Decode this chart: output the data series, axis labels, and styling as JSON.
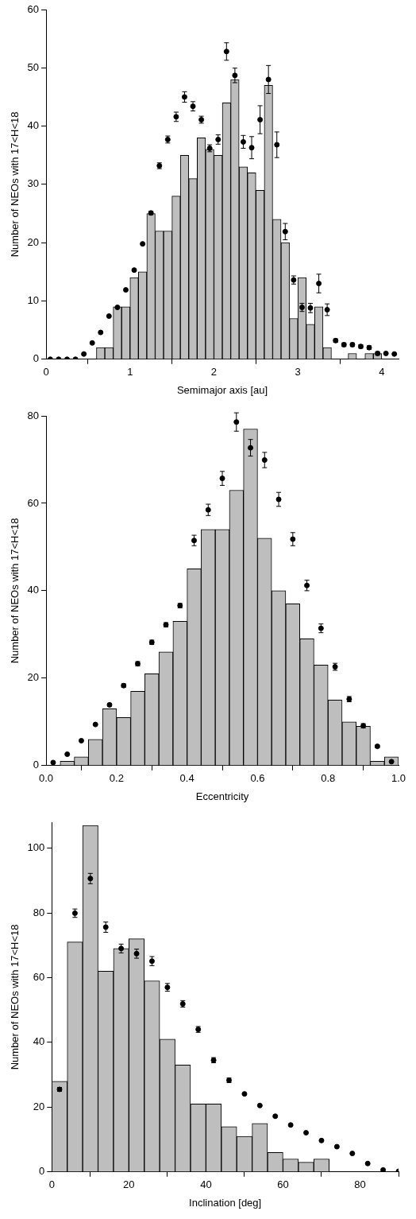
{
  "chart_data": [
    {
      "type": "histogram",
      "xlabel": "Semimajor axis [au]",
      "ylabel": "Number of NEOs with 17<H<18",
      "xlim": [
        0,
        4.2
      ],
      "ylim": [
        0,
        60
      ],
      "xticks": [
        0,
        1,
        2,
        3,
        4
      ],
      "yticks": [
        0,
        10,
        20,
        30,
        40,
        50,
        60
      ],
      "marker": "circle",
      "series": [
        {
          "color": "#bebebe",
          "bins": [
            0.6,
            0.7,
            0.8,
            0.9,
            1.0,
            1.1,
            1.2,
            1.3,
            1.4,
            1.5,
            1.6,
            1.7,
            1.8,
            1.9,
            2.0,
            2.1,
            2.2,
            2.3,
            2.4,
            2.5,
            2.6,
            2.7,
            2.8,
            2.9,
            3.0,
            3.1,
            3.2,
            3.3,
            3.4,
            3.5,
            3.6,
            3.7,
            3.8,
            3.9,
            4.0
          ],
          "values": [
            2,
            2,
            9,
            9,
            14,
            15,
            25,
            22,
            22,
            28,
            35,
            31,
            38,
            36,
            35,
            44,
            48,
            33,
            32,
            29,
            47,
            24,
            20,
            7,
            14,
            6,
            9,
            2,
            0,
            0,
            1,
            0,
            1,
            1
          ]
        },
        {
          "type": "scatter",
          "color": "#000000",
          "x": [
            0.05,
            0.15,
            0.25,
            0.35,
            0.45,
            0.55,
            0.65,
            0.75,
            0.85,
            0.95,
            1.05,
            1.15,
            1.25,
            1.35,
            1.45,
            1.55,
            1.65,
            1.75,
            1.85,
            1.95,
            2.05,
            2.15,
            2.25,
            2.35,
            2.45,
            2.55,
            2.65,
            2.75,
            2.85,
            2.95,
            3.05,
            3.15,
            3.25,
            3.35,
            3.45,
            3.55,
            3.65,
            3.75,
            3.85,
            3.95,
            4.05,
            4.15
          ],
          "values": [
            0,
            0,
            0,
            0,
            0.9,
            2.8,
            4.6,
            7.4,
            8.9,
            11.9,
            15.3,
            19.8,
            25.1,
            33.2,
            37.7,
            41.6,
            45.0,
            43.4,
            41.1,
            36.2,
            37.7,
            52.8,
            48.7,
            37.3,
            36.3,
            41.1,
            48.0,
            36.8,
            21.9,
            13.6,
            8.9,
            8.8,
            13.0,
            8.5,
            3.2,
            2.5,
            2.5,
            2.2,
            2.0,
            1.0,
            1.0,
            0.9
          ],
          "errors": [
            null,
            null,
            null,
            null,
            null,
            null,
            null,
            null,
            null,
            null,
            null,
            null,
            0.3,
            0.5,
            0.6,
            0.8,
            0.9,
            0.8,
            0.6,
            0.6,
            0.8,
            1.5,
            1.25,
            1.1,
            1.9,
            2.4,
            2.4,
            2.2,
            1.4,
            0.7,
            0.7,
            0.8,
            1.6,
            1.0,
            0.3,
            0.3,
            0.3,
            0.3,
            0.3,
            0.3,
            null,
            null
          ]
        }
      ]
    },
    {
      "type": "histogram",
      "xlabel": "Eccentricity",
      "ylabel": "Number of NEOs with 17<H<18",
      "xlim": [
        0,
        1
      ],
      "ylim": [
        0,
        80
      ],
      "xticks": [
        {
          "value": 0,
          "label": "0.0"
        },
        {
          "value": 0.2,
          "label": "0.2"
        },
        {
          "value": 0.4,
          "label": "0.4"
        },
        {
          "value": 0.6,
          "label": "0.6"
        },
        {
          "value": 0.8,
          "label": "0.8"
        },
        {
          "value": 1,
          "label": "1.0"
        }
      ],
      "yticks": [
        0,
        20,
        40,
        60,
        80
      ],
      "marker": "circle",
      "series": [
        {
          "color": "#bebebe",
          "bins": [
            0,
            0.04,
            0.08,
            0.12,
            0.16,
            0.2,
            0.24,
            0.28,
            0.32,
            0.36,
            0.4,
            0.44,
            0.48,
            0.52,
            0.56,
            0.6,
            0.64,
            0.68,
            0.72,
            0.76,
            0.8,
            0.84,
            0.88,
            0.92,
            0.96,
            1.0
          ],
          "values": [
            0,
            1,
            2,
            6,
            13,
            11,
            17,
            21,
            26,
            33,
            45,
            54,
            54,
            63,
            77,
            52,
            40,
            37,
            29,
            23,
            15,
            10,
            9,
            1,
            2
          ]
        },
        {
          "type": "scatter",
          "color": "#000000",
          "x": [
            0.02,
            0.06,
            0.1,
            0.14,
            0.18,
            0.22,
            0.26,
            0.3,
            0.34,
            0.38,
            0.42,
            0.46,
            0.5,
            0.54,
            0.58,
            0.62,
            0.66,
            0.7,
            0.74,
            0.78,
            0.82,
            0.86,
            0.9,
            0.94,
            0.98
          ],
          "values": [
            0.7,
            2.6,
            5.7,
            9.4,
            13.9,
            18.3,
            23.3,
            28.2,
            32.2,
            36.6,
            51.5,
            58.5,
            65.7,
            78.6,
            72.7,
            69.9,
            60.9,
            51.8,
            41.2,
            31.4,
            22.6,
            15.2,
            9.1,
            4.4,
            0.9
          ],
          "errors": [
            null,
            null,
            null,
            null,
            0.3,
            0.4,
            0.5,
            0.5,
            0.5,
            0.5,
            1.2,
            1.3,
            1.6,
            2.1,
            1.9,
            1.75,
            1.6,
            1.5,
            1.2,
            1.0,
            0.8,
            0.6,
            0.5,
            0.3,
            null
          ]
        }
      ]
    },
    {
      "type": "histogram",
      "xlabel": "Inclination [deg]",
      "ylabel": "Number of NEOs with 17<H<18",
      "xlim": [
        0,
        90
      ],
      "ylim": [
        0,
        108
      ],
      "xticks": [
        0,
        20,
        40,
        60,
        80
      ],
      "yticks": [
        0,
        20,
        40,
        60,
        80,
        100
      ],
      "marker": "circle",
      "series": [
        {
          "color": "#bebebe",
          "bins": [
            0,
            4,
            8,
            12,
            16,
            20,
            24,
            28,
            32,
            36,
            40,
            44,
            48,
            52,
            56,
            60,
            64,
            68,
            72
          ],
          "values": [
            28,
            71,
            107,
            62,
            69,
            72,
            59,
            41,
            33,
            21,
            21,
            14,
            11,
            15,
            6,
            4,
            3,
            4
          ]
        },
        {
          "type": "scatter",
          "color": "#000000",
          "x": [
            2,
            6,
            10,
            14,
            18,
            22,
            26,
            30,
            34,
            38,
            42,
            46,
            50,
            54,
            58,
            62,
            66,
            70,
            74,
            78,
            82,
            86,
            90
          ],
          "values": [
            25.5,
            79.9,
            90.6,
            75.6,
            69.0,
            67.4,
            65.1,
            57.0,
            51.9,
            44.0,
            34.5,
            28.3,
            24.1,
            20.5,
            17.2,
            14.5,
            12.1,
            9.7,
            7.8,
            5.7,
            2.6,
            0.6,
            0.2
          ],
          "errors": [
            0.6,
            1.3,
            1.6,
            1.6,
            1.35,
            1.4,
            1.4,
            1.2,
            1.0,
            0.9,
            0.8,
            0.7,
            null,
            null,
            null,
            null,
            null,
            null,
            null,
            null,
            null,
            null,
            null
          ]
        }
      ]
    }
  ]
}
